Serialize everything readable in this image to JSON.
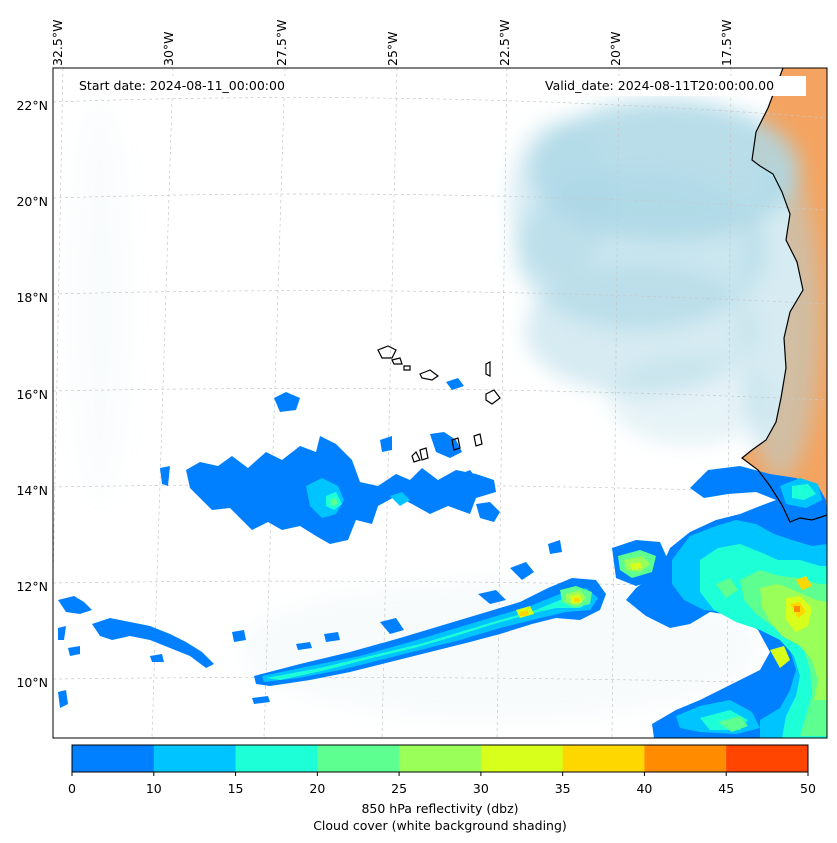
{
  "map": {
    "start_date": "Start date: 2024-08-11_00:00:00",
    "valid_date": "Valid_date: 2024-08-11T20:00:00.00",
    "lon_labels": [
      "32.5°W",
      "30°W",
      "27.5°W",
      "25°W",
      "22.5°W",
      "20°W",
      "17.5°W"
    ],
    "lat_labels": [
      "22°N",
      "20°N",
      "18°N",
      "16°N",
      "14°N",
      "12°N",
      "10°N"
    ],
    "colors": {
      "land": "#f4a460",
      "cloud": "#add8e6",
      "coastline": "#000000",
      "gridlines": "#c8c8c8"
    }
  },
  "colorbar": {
    "ticks": [
      "0",
      "10",
      "15",
      "20",
      "25",
      "30",
      "35",
      "40",
      "45",
      "50"
    ],
    "colors": [
      "#0080ff",
      "#00c4ff",
      "#1dffd7",
      "#5cff90",
      "#9aff58",
      "#d7ff1b",
      "#ffd700",
      "#ff8c00",
      "#ff4500"
    ],
    "label": "850 hPa reflectivity (dbz)",
    "sublabel": "Cloud cover (white background shading)"
  }
}
